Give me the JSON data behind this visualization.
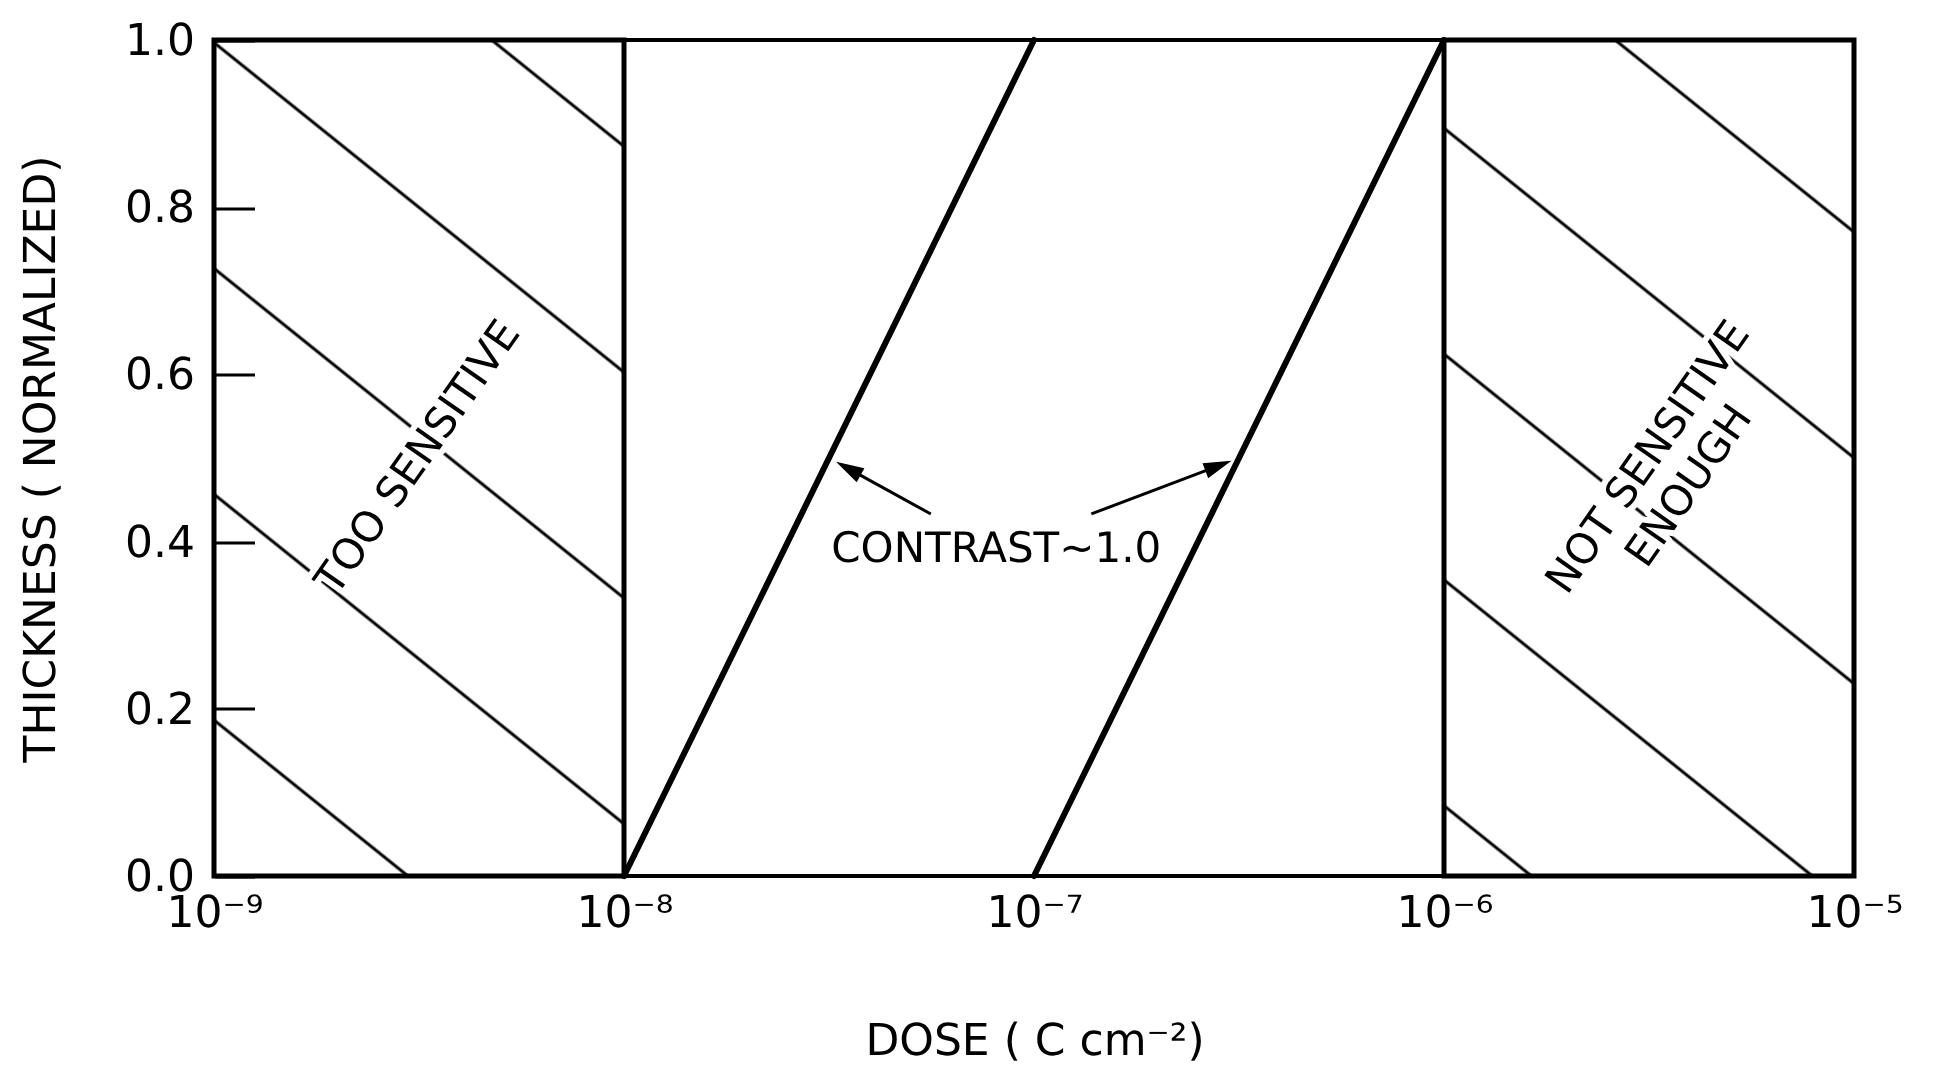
{
  "chart_data": {
    "type": "line",
    "xlabel": "DOSE ( C cm⁻²)",
    "ylabel": "THICKNESS ( NORMALIZED)",
    "series": [
      {
        "color": "#000000",
        "x": [
          1e-08,
          1e-07
        ],
        "values": [
          0,
          1
        ]
      },
      {
        "color": "#000000",
        "x": [
          1e-07,
          1e-06
        ],
        "values": [
          0,
          1
        ]
      }
    ],
    "xlim": [
      1e-09,
      1e-05
    ],
    "xticks": [
      {
        "value": 1e-09,
        "label": "10⁻⁹"
      },
      {
        "value": 1e-08,
        "label": "10⁻⁸"
      },
      {
        "value": 1e-07,
        "label": "10⁻⁷"
      },
      {
        "value": 1e-06,
        "label": "10⁻⁶"
      },
      {
        "value": 1e-05,
        "label": "10⁻⁵"
      }
    ],
    "ylim": [
      0,
      1
    ],
    "yticks": [
      {
        "value": 0,
        "label": "0.0"
      },
      0.2,
      0.4,
      0.6,
      0.8,
      {
        "value": 1,
        "label": "1.0"
      }
    ],
    "log": "x",
    "grid": false,
    "line_style": "solid",
    "bands": [
      {
        "axis": "x",
        "from": 1e-09,
        "to": 1e-08,
        "label": "TOO SENSITIVE",
        "color": "#000000"
      },
      {
        "axis": "x",
        "from": 1e-06,
        "to": 1e-05,
        "label": "NOT SENSITIVE ENOUGH",
        "color": "#000000"
      }
    ],
    "annotations": [
      "CONTRAST~1.0"
    ]
  }
}
